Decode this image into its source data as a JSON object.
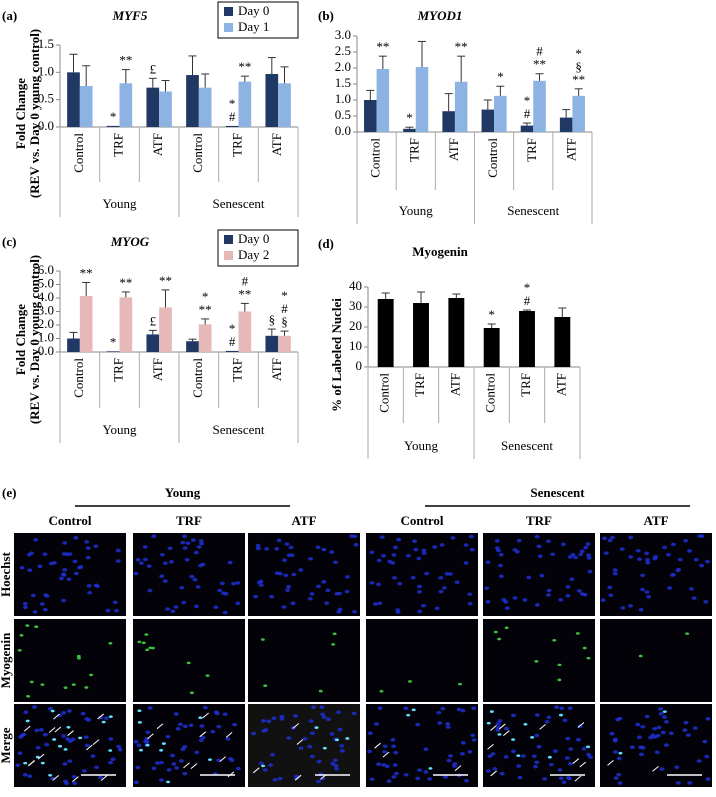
{
  "chart_data": [
    {
      "type": "bar",
      "panel": "(a)",
      "title": "MYF5",
      "title_italic": true,
      "ylabel": [
        "Fold Change",
        "(REV vs. Day 0 young control)"
      ],
      "categories": [
        "Control",
        "TRF",
        "ATF",
        "Control",
        "TRF",
        "ATF"
      ],
      "groups": [
        "Young",
        "Senescent"
      ],
      "ylim": [
        0,
        1.5
      ],
      "yticks": [
        {
          "value": 0,
          "label": "0.0"
        },
        {
          "value": 0.5,
          "label": "0.5"
        },
        {
          "value": 1,
          "label": "1.0"
        },
        {
          "value": 1.5,
          "label": "1.5"
        }
      ],
      "legend": "top",
      "series": [
        {
          "name": "Day 0",
          "color": "#1f3864",
          "values": [
            1.0,
            0.02,
            0.72,
            0.95,
            0.02,
            0.97
          ],
          "errors": [
            0.33,
            null,
            0.17,
            0.35,
            null,
            0.3
          ],
          "annotations": [
            null,
            [
              "*"
            ],
            [
              "£"
            ],
            null,
            [
              "*",
              "#"
            ],
            null
          ]
        },
        {
          "name": "Day 1",
          "color": "#8db3e2",
          "values": [
            0.75,
            0.8,
            0.65,
            0.72,
            0.83,
            0.8
          ],
          "errors": [
            0.37,
            0.25,
            0.2,
            0.25,
            0.1,
            0.3
          ],
          "annotations": [
            null,
            [
              "**"
            ],
            null,
            null,
            [
              "**"
            ],
            null
          ]
        }
      ]
    },
    {
      "type": "bar",
      "panel": "(b)",
      "title": "MYOD1",
      "title_italic": true,
      "categories": [
        "Control",
        "TRF",
        "ATF",
        "Control",
        "TRF",
        "ATF"
      ],
      "groups": [
        "Young",
        "Senescent"
      ],
      "ylim": [
        0,
        3
      ],
      "yticks": [
        {
          "value": 0,
          "label": "0.0"
        },
        {
          "value": 0.5,
          "label": "0.5"
        },
        {
          "value": 1,
          "label": "1.0"
        },
        {
          "value": 1.5,
          "label": "1.5"
        },
        {
          "value": 2,
          "label": "2.0"
        },
        {
          "value": 2.5,
          "label": "2.5"
        },
        {
          "value": 3,
          "label": "3.0"
        }
      ],
      "series": [
        {
          "color": "#1f3864",
          "values": [
            1.0,
            0.1,
            0.65,
            0.7,
            0.2,
            0.45
          ],
          "errors": [
            0.3,
            0.05,
            0.55,
            0.3,
            0.08,
            0.25
          ],
          "annotations": [
            null,
            [
              "*"
            ],
            null,
            null,
            [
              "*",
              "#"
            ],
            null
          ]
        },
        {
          "color": "#8db3e2",
          "values": [
            1.97,
            2.03,
            1.57,
            1.13,
            1.6,
            1.13
          ],
          "errors": [
            0.4,
            0.8,
            0.8,
            0.3,
            0.22,
            0.22
          ],
          "annotations": [
            [
              "**"
            ],
            null,
            [
              "**"
            ],
            [
              "*"
            ],
            [
              "#",
              "**"
            ],
            [
              "*",
              "§",
              "**"
            ]
          ]
        }
      ]
    },
    {
      "type": "bar",
      "panel": "(c)",
      "title": "MYOG",
      "title_italic": true,
      "ylabel": [
        "Fold Change",
        "(REV vs. Day 0 young control)"
      ],
      "categories": [
        "Control",
        "TRF",
        "ATF",
        "Control",
        "TRF",
        "ATF"
      ],
      "groups": [
        "Young",
        "Senescent"
      ],
      "ylim": [
        0,
        6
      ],
      "yticks": [
        {
          "value": 0,
          "label": "0.0"
        },
        {
          "value": 1,
          "label": "1.0"
        },
        {
          "value": 2,
          "label": "2.0"
        },
        {
          "value": 3,
          "label": "3.0"
        },
        {
          "value": 4,
          "label": "4.0"
        },
        {
          "value": 5,
          "label": "5.0"
        },
        {
          "value": 6,
          "label": "6.0"
        }
      ],
      "legend": "top",
      "series": [
        {
          "name": "Day 0",
          "color": "#1f3864",
          "values": [
            1.0,
            0.05,
            1.3,
            0.8,
            0.08,
            1.2
          ],
          "errors": [
            0.45,
            null,
            0.3,
            0.15,
            null,
            0.5
          ],
          "annotations": [
            null,
            [
              "*"
            ],
            [
              "£"
            ],
            null,
            [
              "*",
              "#"
            ],
            [
              "§"
            ]
          ]
        },
        {
          "name": "Day 2",
          "color": "#e6b9b8",
          "values": [
            4.15,
            4.05,
            3.3,
            2.05,
            3.0,
            1.2
          ],
          "errors": [
            1.0,
            0.4,
            1.3,
            0.4,
            0.6,
            0.35
          ],
          "annotations": [
            [
              "**"
            ],
            [
              "**"
            ],
            [
              "**"
            ],
            [
              "*",
              "**"
            ],
            [
              "#",
              "**"
            ],
            [
              "*",
              "#",
              "§"
            ]
          ]
        }
      ]
    },
    {
      "type": "bar",
      "panel": "(d)",
      "title": "Myogenin",
      "title_italic": false,
      "ylabel": [
        "% of Labeled Nuclei"
      ],
      "categories": [
        "Control",
        "TRF",
        "ATF",
        "Control",
        "TRF",
        "ATF"
      ],
      "groups": [
        "Young",
        "Senescent"
      ],
      "ylim": [
        0,
        40
      ],
      "yticks": [
        0,
        10,
        20,
        30,
        40
      ],
      "series": [
        {
          "color": "#000000",
          "values": [
            34,
            32,
            34.5,
            19.5,
            28,
            25
          ],
          "errors": [
            3,
            5.5,
            2,
            2,
            0.5,
            4.5
          ],
          "annotations": [
            null,
            null,
            null,
            [
              "*"
            ],
            [
              "*",
              "#"
            ],
            null
          ]
        }
      ]
    }
  ],
  "panel_e": {
    "panel": "(e)",
    "groups": [
      "Young",
      "Senescent"
    ],
    "columns": [
      "Control",
      "TRF",
      "ATF",
      "Control",
      "TRF",
      "ATF"
    ],
    "rows": [
      "Hoechst",
      "Myogenin",
      "Merge"
    ]
  }
}
